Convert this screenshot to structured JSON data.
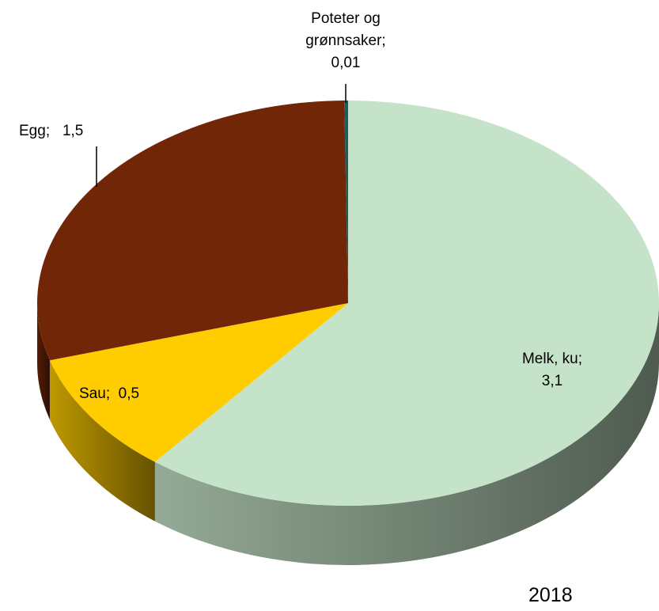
{
  "chart_data": {
    "type": "pie3d",
    "categories": [
      "Melk, ku",
      "Sau",
      "Egg",
      "Poteter og grønnsaker"
    ],
    "values": [
      3.1,
      0.5,
      1.5,
      0.01
    ],
    "value_labels": [
      "3,1",
      "0,5",
      "1,5",
      "0,01"
    ],
    "label_separator": ";",
    "colors": [
      "#c5e3c8",
      "#ffcc00",
      "#722608",
      "#1f5c5c"
    ],
    "annotation": "2018"
  }
}
